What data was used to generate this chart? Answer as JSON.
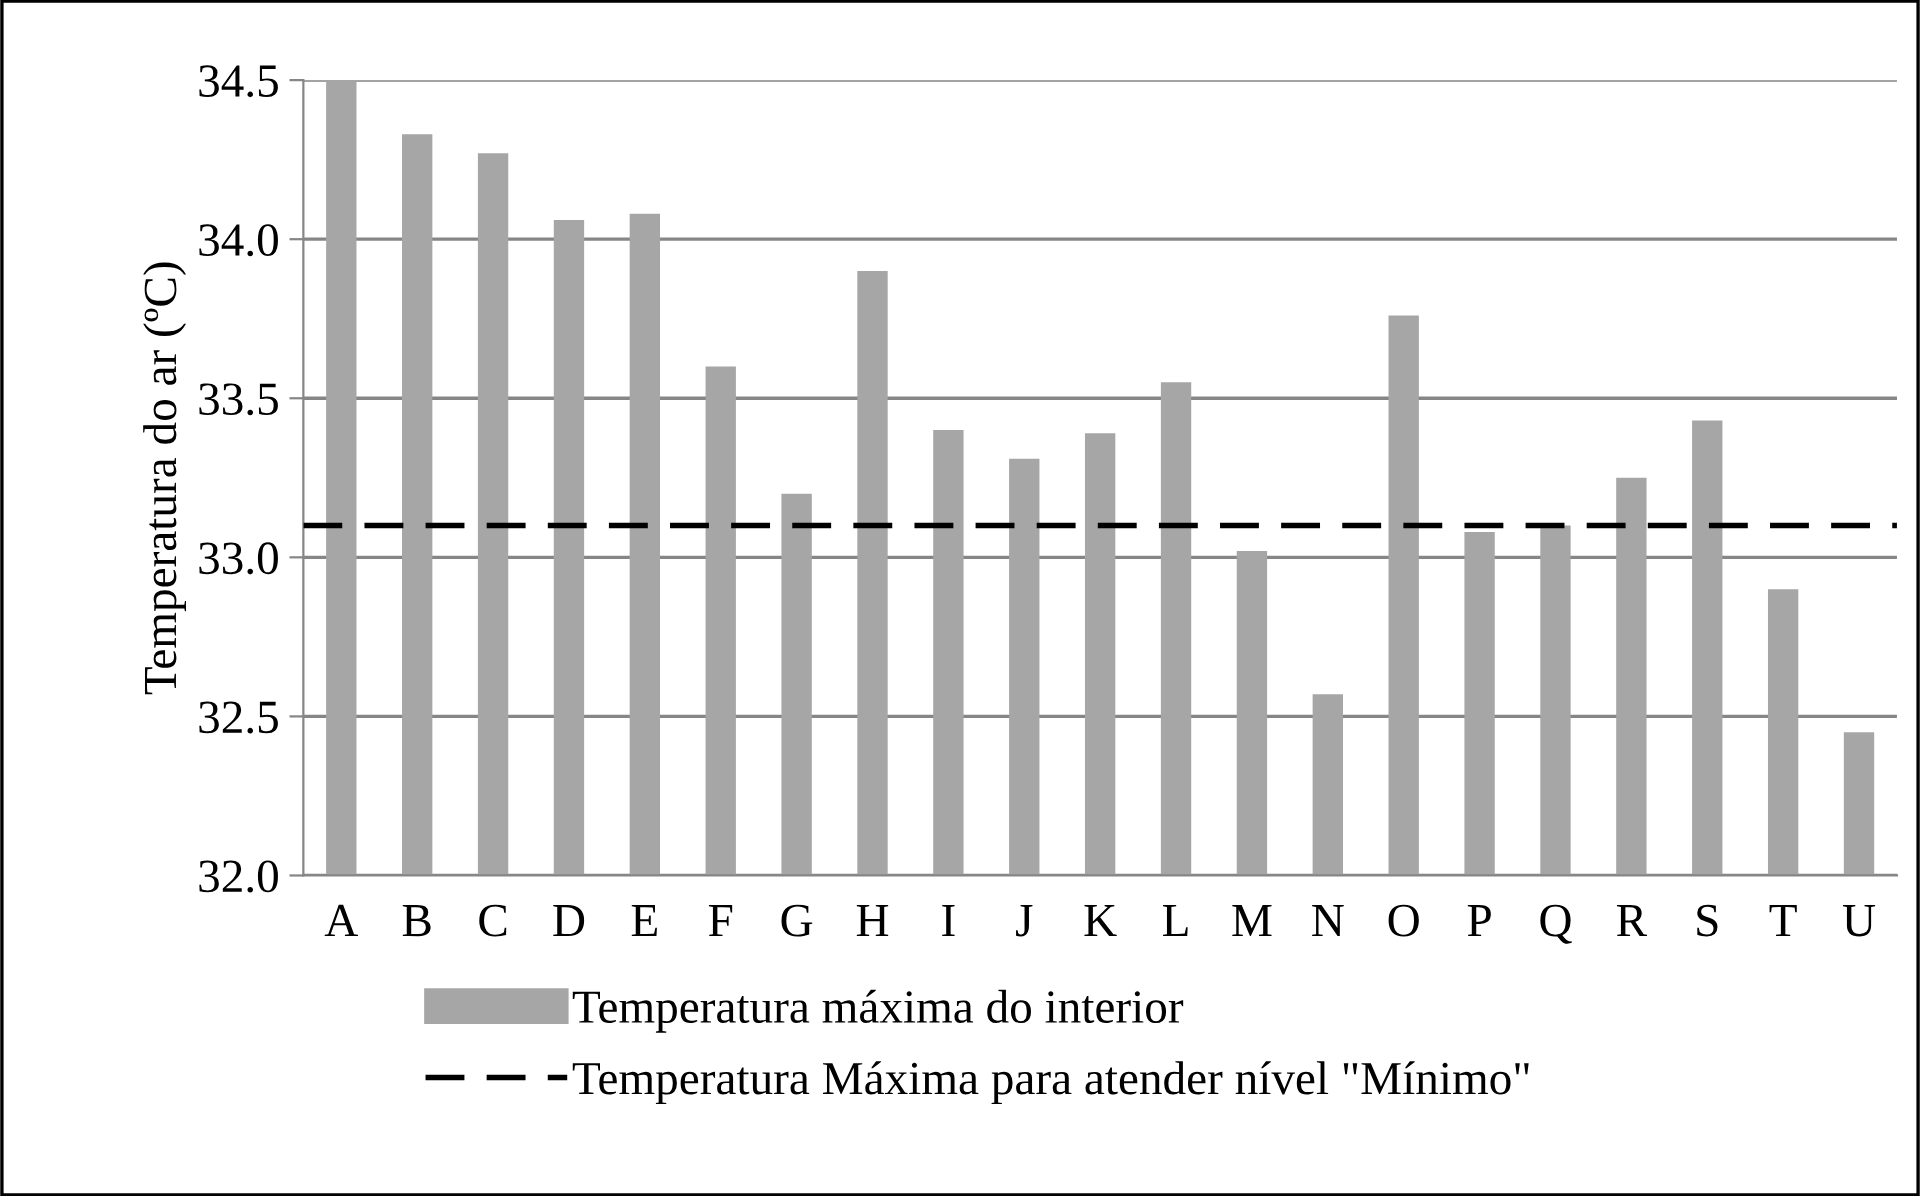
{
  "chart_data": {
    "type": "bar",
    "ylabel": "Temperatura do ar (ºC)",
    "categories": [
      "A",
      "B",
      "C",
      "D",
      "E",
      "F",
      "G",
      "H",
      "I",
      "J",
      "K",
      "L",
      "M",
      "N",
      "O",
      "P",
      "Q",
      "R",
      "S",
      "T",
      "U"
    ],
    "series": [
      {
        "name": "Temperatura máxima do interior",
        "color": "#a6a6a6",
        "values": [
          34.5,
          34.33,
          34.27,
          34.06,
          34.08,
          33.6,
          33.2,
          33.9,
          33.4,
          33.31,
          33.39,
          33.55,
          33.02,
          32.57,
          33.76,
          33.08,
          33.1,
          33.25,
          33.43,
          32.9,
          32.45
        ]
      }
    ],
    "ref_lines": [
      {
        "axis": "y",
        "value": 33.1,
        "label": "Temperatura Máxima para atender nível \"Mínimo\"",
        "color": "#000000",
        "line_style": "dashed"
      }
    ],
    "ylim": [
      32.0,
      34.5
    ],
    "yticks": [
      {
        "value": 32.0,
        "label": "32.0"
      },
      32.5,
      {
        "value": 33.0,
        "label": "33.0"
      },
      33.5,
      {
        "value": 34.0,
        "label": "34.0"
      },
      34.5
    ],
    "grid": "y",
    "legend": "bottom"
  }
}
